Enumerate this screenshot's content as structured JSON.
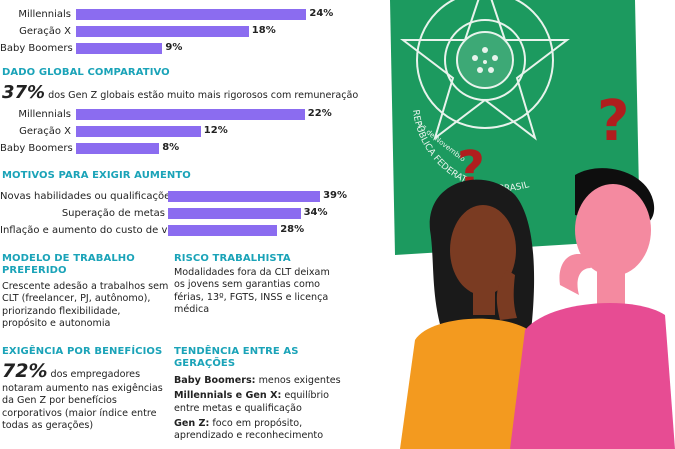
{
  "colors": {
    "bar": "#8b6cf0",
    "accent": "#1aa3b8",
    "flag_green": "#1c9a5f"
  },
  "chart_data": [
    {
      "type": "bar",
      "orientation": "horizontal",
      "categories": [
        "Millennials",
        "Geração X",
        "Baby Boomers"
      ],
      "values": [
        24,
        18,
        9
      ],
      "value_labels": [
        "24%",
        "18%",
        "9%"
      ]
    },
    {
      "type": "bar",
      "orientation": "horizontal",
      "title": "DADO GLOBAL COMPARATIVO",
      "categories": [
        "Millennials",
        "Geração X",
        "Baby Boomers"
      ],
      "values": [
        22,
        12,
        8
      ],
      "value_labels": [
        "22%",
        "12%",
        "8%"
      ]
    },
    {
      "type": "bar",
      "orientation": "horizontal",
      "title": "MOTIVOS PARA EXIGIR AUMENTO",
      "categories": [
        "Novas habilidades ou qualificações",
        "Superação de metas",
        "Inflação e aumento do custo de vida"
      ],
      "values": [
        39,
        34,
        28
      ],
      "value_labels": [
        "39%",
        "34%",
        "28%"
      ]
    }
  ],
  "global": {
    "stat_value": "37%",
    "stat_text": " dos Gen Z globais estão muito mais rigorosos com remuneração"
  },
  "modelo": {
    "title_line1": "MODELO DE TRABALHO",
    "title_line2": "PREFERIDO",
    "lines": [
      "Crescente adesão a trabalhos sem",
      "CLT (freelancer, PJ, autônomo),",
      "priorizando flexibilidade,",
      "propósito e autonomia"
    ]
  },
  "risco": {
    "title": "RISCO TRABALHISTA",
    "lines": [
      "Modalidades fora da CLT deixam",
      "os jovens sem garantias como",
      "férias, 13º, FGTS, INSS e licença",
      "médica"
    ]
  },
  "beneficios": {
    "title": "EXIGÊNCIA POR BENEFÍCIOS",
    "stat_value": "72%",
    "stat_text": " dos empregadores",
    "lines": [
      "notaram aumento nas exigências",
      "da Gen Z por benefícios",
      "corporativos (maior índice entre",
      "todas as gerações)"
    ]
  },
  "tendencia": {
    "title_line1": "TENDÊNCIA ENTRE AS",
    "title_line2": "GERAÇÕES",
    "items": [
      {
        "label": "Baby Boomers:",
        "text": " menos exigentes"
      },
      {
        "label": "Millennials e Gen X:",
        "text": " equilíbrio",
        "text2": "entre metas e qualificação"
      },
      {
        "label": "Gen Z:",
        "text": " foco em propósito,",
        "text2": "aprendizado e reconhecimento"
      }
    ]
  },
  "illustration": {
    "seal_text": "REPÚBLICA FEDERATIVA DO BRASIL",
    "seal_date": "15 de Novembro"
  }
}
